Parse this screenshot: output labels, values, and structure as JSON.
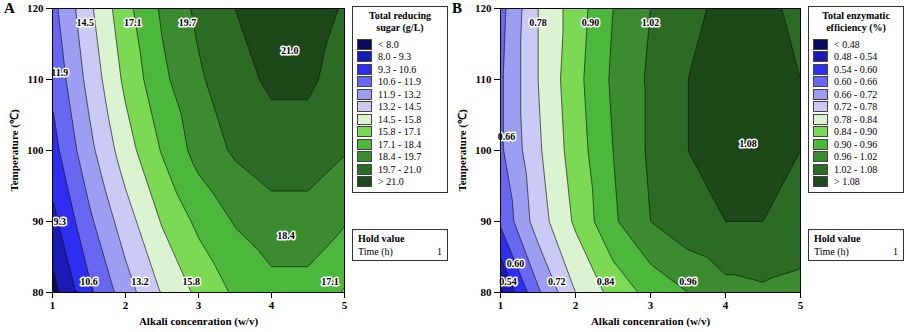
{
  "chart_data": [
    {
      "type": "contour",
      "title": "A",
      "x_label": "Alkali concenration (w/v)",
      "y_label": "Temperature (℃)",
      "xlim": [
        1,
        5
      ],
      "ylim": [
        80,
        120
      ],
      "xticks": [
        1,
        2,
        3,
        4,
        5
      ],
      "yticks": [
        80,
        90,
        100,
        110,
        120
      ],
      "x": [
        1,
        1.5,
        2,
        2.5,
        3,
        3.5,
        4,
        4.5,
        5
      ],
      "y": [
        80,
        90,
        100,
        110,
        120
      ],
      "cells": [
        [
          7.5,
          10.3,
          12.6,
          14.6,
          16.1,
          17.3,
          18.0,
          18.0,
          17.0
        ],
        [
          8.9,
          11.6,
          13.9,
          15.9,
          17.4,
          18.5,
          19.1,
          19.1,
          18.5
        ],
        [
          10.1,
          12.8,
          15.2,
          17.2,
          18.9,
          19.9,
          20.5,
          20.5,
          19.8
        ],
        [
          10.9,
          13.6,
          16.1,
          18.1,
          19.5,
          20.6,
          21.2,
          21.2,
          20.5
        ],
        [
          11.5,
          14.2,
          16.7,
          18.6,
          20.0,
          21.0,
          21.5,
          21.5,
          20.9
        ]
      ],
      "colorbar": {
        "title": "Total reducing sugar (g/L)",
        "thresholds": [
          8.0,
          9.3,
          10.6,
          11.9,
          13.2,
          14.5,
          15.8,
          17.1,
          18.4,
          19.7,
          21.0
        ],
        "labels": [
          "< 8.0",
          "8.0 - 9.3",
          "9.3 - 10.6",
          "10.6 - 11.9",
          "11.9 - 13.2",
          "13.2 - 14.5",
          "14.5 - 15.8",
          "15.8 - 17.1",
          "17.1 - 18.4",
          "18.4 - 19.7",
          "19.7 - 21.0",
          "> 21.0"
        ],
        "colors": [
          "#0b0b5e",
          "#1a1ab4",
          "#2e2ef0",
          "#6767f2",
          "#9d9df2",
          "#cacaf5",
          "#dcf3d2",
          "#7cd954",
          "#4bb83c",
          "#3a8c2f",
          "#2c6b24",
          "#1d4818"
        ]
      },
      "contour_labels": [
        {
          "x": 1.45,
          "y": 118,
          "value": 14.5,
          "label": "14.5"
        },
        {
          "x": 2.1,
          "y": 118,
          "value": 17.1,
          "label": "17.1"
        },
        {
          "x": 2.85,
          "y": 118,
          "value": 19.7,
          "label": "19.7"
        },
        {
          "x": 4.25,
          "y": 114,
          "value": 21.0,
          "label": "21.0"
        },
        {
          "x": 1.1,
          "y": 111,
          "value": 11.9,
          "label": "11.9"
        },
        {
          "x": 1.1,
          "y": 90,
          "value": 9.3,
          "label": "9.3"
        },
        {
          "x": 1.5,
          "y": 81.5,
          "value": 10.6,
          "label": "10.6"
        },
        {
          "x": 2.2,
          "y": 81.5,
          "value": 13.2,
          "label": "13.2"
        },
        {
          "x": 2.9,
          "y": 81.5,
          "value": 15.8,
          "label": "15.8"
        },
        {
          "x": 4.2,
          "y": 88,
          "value": 18.4,
          "label": "18.4"
        },
        {
          "x": 4.8,
          "y": 81.5,
          "value": 17.1,
          "label": "17.1"
        }
      ],
      "hold": {
        "title": "Hold value",
        "name": "Time (h)",
        "value": 1
      }
    },
    {
      "type": "contour",
      "title": "B",
      "x_label": "Alkali concenration (w/v)",
      "y_label": "Temperature (℃)",
      "xlim": [
        1,
        5
      ],
      "ylim": [
        80,
        120
      ],
      "xticks": [
        1,
        2,
        3,
        4,
        5
      ],
      "yticks": [
        80,
        90,
        100,
        110,
        120
      ],
      "x": [
        1,
        1.5,
        2,
        2.5,
        3,
        3.5,
        4,
        4.5,
        5
      ],
      "y": [
        80,
        90,
        100,
        110,
        120
      ],
      "cells": [
        [
          0.47,
          0.65,
          0.78,
          0.86,
          0.92,
          0.96,
          1.0,
          1.01,
          1.0
        ],
        [
          0.61,
          0.75,
          0.85,
          0.95,
          1.02,
          1.06,
          1.08,
          1.08,
          1.06
        ],
        [
          0.65,
          0.77,
          0.87,
          0.96,
          1.03,
          1.08,
          1.1,
          1.1,
          1.08
        ],
        [
          0.65,
          0.78,
          0.88,
          0.97,
          1.03,
          1.08,
          1.1,
          1.1,
          1.08
        ],
        [
          0.64,
          0.78,
          0.87,
          0.96,
          1.02,
          1.07,
          1.09,
          1.09,
          1.07
        ]
      ],
      "colorbar": {
        "title": "Total enzymatic efficiency (%)",
        "thresholds": [
          0.48,
          0.54,
          0.6,
          0.66,
          0.72,
          0.78,
          0.84,
          0.9,
          0.96,
          1.02,
          1.08
        ],
        "labels": [
          "< 0.48",
          "0.48 - 0.54",
          "0.54 - 0.60",
          "0.60 - 0.66",
          "0.66 - 0.72",
          "0.72 - 0.78",
          "0.78 - 0.84",
          "0.84 - 0.90",
          "0.90 - 0.96",
          "0.96 - 1.02",
          "1.02 - 1.08",
          "> 1.08"
        ],
        "colors": [
          "#0b0b5e",
          "#1a1ab4",
          "#2e2ef0",
          "#6767f2",
          "#9d9df2",
          "#cacaf5",
          "#dcf3d2",
          "#7cd954",
          "#4bb83c",
          "#3a8c2f",
          "#2c6b24",
          "#1d4818"
        ]
      },
      "contour_labels": [
        {
          "x": 1.5,
          "y": 118,
          "value": 0.78,
          "label": "0.78"
        },
        {
          "x": 2.2,
          "y": 118,
          "value": 0.9,
          "label": "0.90"
        },
        {
          "x": 3.0,
          "y": 118,
          "value": 1.02,
          "label": "1.02"
        },
        {
          "x": 4.3,
          "y": 101,
          "value": 1.08,
          "label": "1.08"
        },
        {
          "x": 1.08,
          "y": 102,
          "value": 0.66,
          "label": "0.66"
        },
        {
          "x": 1.2,
          "y": 84,
          "value": 0.6,
          "label": "0.60"
        },
        {
          "x": 1.1,
          "y": 81.5,
          "value": 0.54,
          "label": "0.54"
        },
        {
          "x": 1.75,
          "y": 81.5,
          "value": 0.72,
          "label": "0.72"
        },
        {
          "x": 2.4,
          "y": 81.5,
          "value": 0.84,
          "label": "0.84"
        },
        {
          "x": 3.5,
          "y": 81.5,
          "value": 0.96,
          "label": "0.96"
        }
      ],
      "hold": {
        "title": "Hold value",
        "name": "Time (h)",
        "value": 1
      }
    }
  ]
}
